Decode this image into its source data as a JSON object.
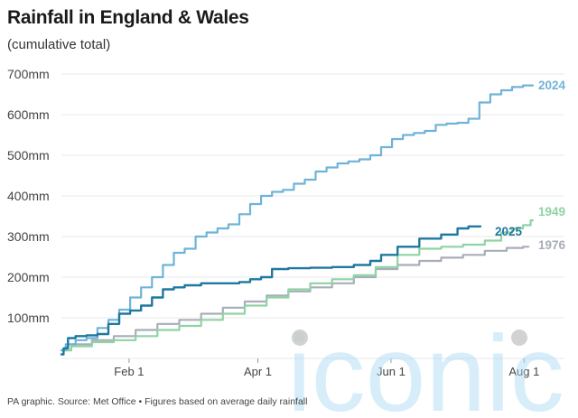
{
  "header": {
    "title": "Rainfall in England & Wales",
    "subtitle": "(cumulative total)"
  },
  "footer": {
    "source": "PA graphic. Source: Met Office • Figures based on average daily rainfall"
  },
  "watermark": {
    "text": "iconic",
    "color": "#a9d8f3"
  },
  "chart_data": {
    "type": "line",
    "title": "Rainfall in England & Wales",
    "subtitle": "(cumulative total)",
    "xlabel": "",
    "ylabel": "",
    "x_unit": "day_of_year",
    "xlim": [
      1,
      217
    ],
    "ylim": [
      0,
      700
    ],
    "grid": true,
    "legend": "direct-labels-right",
    "y_ticks": [
      {
        "value": 100,
        "label": "100mm"
      },
      {
        "value": 200,
        "label": "200mm"
      },
      {
        "value": 300,
        "label": "300mm"
      },
      {
        "value": 400,
        "label": "400mm"
      },
      {
        "value": 500,
        "label": "500mm"
      },
      {
        "value": 600,
        "label": "600mm"
      },
      {
        "value": 700,
        "label": "700mm"
      }
    ],
    "x_ticks": [
      {
        "value": 32,
        "label": "Feb 1"
      },
      {
        "value": 91,
        "label": "Apr 1"
      },
      {
        "value": 152,
        "label": "Jun 1"
      },
      {
        "value": 213,
        "label": "Aug 1"
      }
    ],
    "series": [
      {
        "name": "2024",
        "color": "#6fb3d8",
        "points": [
          [
            1,
            20
          ],
          [
            5,
            35
          ],
          [
            10,
            45
          ],
          [
            15,
            50
          ],
          [
            20,
            75
          ],
          [
            25,
            95
          ],
          [
            30,
            120
          ],
          [
            35,
            150
          ],
          [
            40,
            175
          ],
          [
            45,
            200
          ],
          [
            50,
            230
          ],
          [
            55,
            260
          ],
          [
            60,
            270
          ],
          [
            65,
            300
          ],
          [
            70,
            310
          ],
          [
            75,
            320
          ],
          [
            80,
            330
          ],
          [
            85,
            355
          ],
          [
            90,
            380
          ],
          [
            95,
            400
          ],
          [
            100,
            410
          ],
          [
            105,
            415
          ],
          [
            110,
            430
          ],
          [
            115,
            440
          ],
          [
            120,
            460
          ],
          [
            125,
            470
          ],
          [
            130,
            480
          ],
          [
            135,
            485
          ],
          [
            140,
            490
          ],
          [
            145,
            500
          ],
          [
            150,
            520
          ],
          [
            155,
            540
          ],
          [
            160,
            550
          ],
          [
            165,
            555
          ],
          [
            170,
            560
          ],
          [
            175,
            575
          ],
          [
            180,
            578
          ],
          [
            185,
            580
          ],
          [
            190,
            590
          ],
          [
            195,
            630
          ],
          [
            200,
            650
          ],
          [
            205,
            660
          ],
          [
            210,
            668
          ],
          [
            215,
            672
          ],
          [
            217,
            672
          ]
        ]
      },
      {
        "name": "2025",
        "color": "#1f789f",
        "points": [
          [
            1,
            10
          ],
          [
            3,
            25
          ],
          [
            5,
            50
          ],
          [
            10,
            55
          ],
          [
            15,
            57
          ],
          [
            20,
            60
          ],
          [
            25,
            85
          ],
          [
            30,
            110
          ],
          [
            35,
            118
          ],
          [
            40,
            130
          ],
          [
            45,
            150
          ],
          [
            50,
            170
          ],
          [
            55,
            175
          ],
          [
            60,
            180
          ],
          [
            70,
            185
          ],
          [
            75,
            185
          ],
          [
            80,
            185
          ],
          [
            85,
            188
          ],
          [
            90,
            195
          ],
          [
            95,
            200
          ],
          [
            100,
            220
          ],
          [
            110,
            222
          ],
          [
            120,
            223
          ],
          [
            130,
            225
          ],
          [
            140,
            230
          ],
          [
            145,
            240
          ],
          [
            150,
            255
          ],
          [
            160,
            275
          ],
          [
            170,
            295
          ],
          [
            180,
            305
          ],
          [
            185,
            320
          ],
          [
            190,
            325
          ],
          [
            193,
            325
          ]
        ]
      },
      {
        "name": "1949",
        "color": "#8fd3a4",
        "points": [
          [
            1,
            20
          ],
          [
            10,
            30
          ],
          [
            20,
            40
          ],
          [
            30,
            45
          ],
          [
            40,
            55
          ],
          [
            50,
            70
          ],
          [
            60,
            80
          ],
          [
            70,
            95
          ],
          [
            80,
            110
          ],
          [
            90,
            130
          ],
          [
            100,
            150
          ],
          [
            110,
            170
          ],
          [
            120,
            185
          ],
          [
            130,
            195
          ],
          [
            140,
            205
          ],
          [
            150,
            225
          ],
          [
            160,
            255
          ],
          [
            170,
            270
          ],
          [
            180,
            275
          ],
          [
            190,
            280
          ],
          [
            200,
            290
          ],
          [
            205,
            310
          ],
          [
            210,
            320
          ],
          [
            215,
            328
          ],
          [
            217,
            340
          ]
        ]
      },
      {
        "name": "1976",
        "color": "#a8adb8",
        "points": [
          [
            1,
            20
          ],
          [
            10,
            35
          ],
          [
            20,
            45
          ],
          [
            30,
            55
          ],
          [
            40,
            70
          ],
          [
            50,
            85
          ],
          [
            60,
            95
          ],
          [
            70,
            110
          ],
          [
            80,
            125
          ],
          [
            90,
            140
          ],
          [
            100,
            155
          ],
          [
            110,
            165
          ],
          [
            120,
            175
          ],
          [
            130,
            185
          ],
          [
            140,
            200
          ],
          [
            150,
            220
          ],
          [
            160,
            230
          ],
          [
            170,
            240
          ],
          [
            180,
            248
          ],
          [
            190,
            255
          ],
          [
            200,
            265
          ],
          [
            210,
            272
          ],
          [
            215,
            275
          ]
        ]
      }
    ]
  }
}
